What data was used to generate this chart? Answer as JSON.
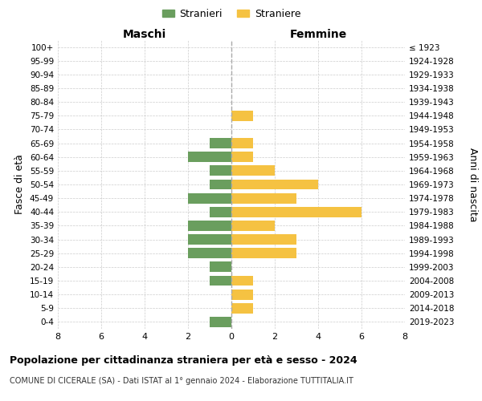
{
  "age_groups": [
    "100+",
    "95-99",
    "90-94",
    "85-89",
    "80-84",
    "75-79",
    "70-74",
    "65-69",
    "60-64",
    "55-59",
    "50-54",
    "45-49",
    "40-44",
    "35-39",
    "30-34",
    "25-29",
    "20-24",
    "15-19",
    "10-14",
    "5-9",
    "0-4"
  ],
  "birth_years": [
    "≤ 1923",
    "1924-1928",
    "1929-1933",
    "1934-1938",
    "1939-1943",
    "1944-1948",
    "1949-1953",
    "1954-1958",
    "1959-1963",
    "1964-1968",
    "1969-1973",
    "1974-1978",
    "1979-1983",
    "1984-1988",
    "1989-1993",
    "1994-1998",
    "1999-2003",
    "2004-2008",
    "2009-2013",
    "2014-2018",
    "2019-2023"
  ],
  "maschi": [
    0,
    0,
    0,
    0,
    0,
    0,
    0,
    1,
    2,
    1,
    1,
    2,
    1,
    2,
    2,
    2,
    1,
    1,
    0,
    0,
    1
  ],
  "femmine": [
    0,
    0,
    0,
    0,
    0,
    1,
    0,
    1,
    1,
    2,
    4,
    3,
    6,
    2,
    3,
    3,
    0,
    1,
    1,
    1,
    0
  ],
  "maschi_color": "#6a9e5e",
  "femmine_color": "#f5c242",
  "background_color": "#ffffff",
  "grid_color": "#cccccc",
  "dashed_line_color": "#aaaaaa",
  "title": "Popolazione per cittadinanza straniera per età e sesso - 2024",
  "subtitle": "COMUNE DI CICERALE (SA) - Dati ISTAT al 1° gennaio 2024 - Elaborazione TUTTITALIA.IT",
  "xlabel_left": "Maschi",
  "xlabel_right": "Femmine",
  "ylabel_left": "Fasce di età",
  "ylabel_right": "Anni di nascita",
  "legend_stranieri": "Stranieri",
  "legend_straniere": "Straniere",
  "xlim": 8,
  "figsize": [
    6.0,
    5.0
  ],
  "dpi": 100
}
